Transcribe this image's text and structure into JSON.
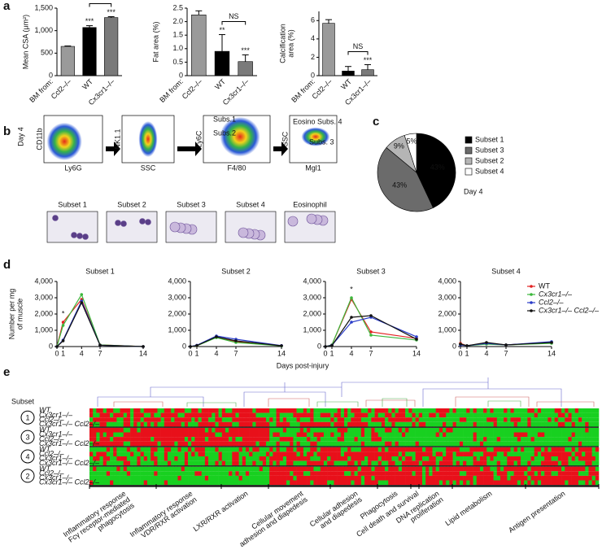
{
  "panel_letters": [
    "a",
    "b",
    "c",
    "d",
    "e"
  ],
  "chart_data": [
    {
      "type": "bar",
      "ylabel": "Mean CSA (μm²)",
      "category_prefix": "BM from:",
      "categories": [
        "Ccl2–/–",
        "WT",
        "Cx3cr1–/–"
      ],
      "values": [
        650,
        1070,
        1290
      ],
      "errors": [
        10,
        40,
        20
      ],
      "colors": [
        "#9a9a9a",
        "#000000",
        "#7a7a7a"
      ],
      "ylim": [
        0,
        1500
      ],
      "yticks": [
        0,
        500,
        {
          "value": 1000,
          "label": "1,000"
        },
        {
          "value": 1500,
          "label": "1,500"
        }
      ],
      "annotations": [
        {
          "text": "***",
          "at": "WT"
        },
        {
          "text": "***",
          "at": "Cx3cr1–/–"
        },
        {
          "text": "***",
          "between": [
            "WT",
            "Cx3cr1–/–"
          ]
        }
      ]
    },
    {
      "type": "bar",
      "ylabel": "Fat area (%)",
      "category_prefix": "BM from:",
      "categories": [
        "Ccl2–/–",
        "WT",
        "Cx3cr1–/–"
      ],
      "values": [
        2.25,
        0.9,
        0.52
      ],
      "errors": [
        0.15,
        0.62,
        0.25
      ],
      "colors": [
        "#9a9a9a",
        "#000000",
        "#7a7a7a"
      ],
      "ylim": [
        0,
        2.5
      ],
      "yticks": [
        0,
        0.5,
        {
          "value": 1,
          "label": "1.0"
        },
        1.5,
        {
          "value": 2,
          "label": "2.0"
        },
        2.5
      ],
      "annotations": [
        {
          "text": "**",
          "at": "WT"
        },
        {
          "text": "***",
          "at": "Cx3cr1–/–"
        },
        {
          "text": "NS",
          "between": [
            "WT",
            "Cx3cr1–/–"
          ]
        }
      ]
    },
    {
      "type": "bar",
      "ylabel": [
        "Calcification",
        "area (%)"
      ],
      "category_prefix": "BM from:",
      "categories": [
        "Ccl2–/–",
        "WT",
        "Cx3cr1–/–"
      ],
      "values": [
        5.7,
        0.5,
        0.65
      ],
      "errors": [
        0.4,
        0.5,
        0.55
      ],
      "colors": [
        "#9a9a9a",
        "#000000",
        "#7a7a7a"
      ],
      "ylim": [
        0,
        7
      ],
      "yticks": [
        0,
        2,
        4,
        6
      ],
      "annotations": [
        {
          "text": "***",
          "at": "Cx3cr1–/–"
        },
        {
          "text": "NS",
          "between": [
            "WT",
            "Cx3cr1–/–"
          ]
        }
      ]
    },
    {
      "type": "pie",
      "categories": [
        "Subset 1",
        "Subset 3",
        "Subset 2",
        "Subset 4"
      ],
      "values": [
        43,
        43,
        9,
        5
      ],
      "value_labels": [
        "43%",
        "43%",
        "9%",
        "5%"
      ],
      "colors": [
        "#000000",
        "#6b6b6b",
        "#b5b5b5",
        "#ffffff"
      ],
      "annotation": "Day 4"
    },
    {
      "type": "line",
      "title": "Subset 1",
      "ylabel": [
        "Number per mg",
        "of muscle"
      ],
      "x": [
        0,
        1,
        4,
        7,
        14
      ],
      "xlim": [
        0,
        14
      ],
      "xticks": [
        0,
        1,
        4,
        7,
        14
      ],
      "ylim": [
        0,
        4000
      ],
      "yticks": [
        0,
        {
          "value": 1000,
          "label": "1,000"
        },
        {
          "value": 2000,
          "label": "2,000"
        },
        {
          "value": 3000,
          "label": "3,000"
        },
        {
          "value": 4000,
          "label": "4,000"
        }
      ],
      "annotations": [
        {
          "text": "*",
          "x": 1
        }
      ],
      "series": [
        {
          "name": "WT",
          "color": "#e32222",
          "values": [
            0,
            1500,
            2900,
            100,
            0
          ]
        },
        {
          "name": "Cx3cr1–/–",
          "color": "#3cb83c",
          "values": [
            0,
            1300,
            3200,
            100,
            0
          ]
        },
        {
          "name": "Ccl2–/–",
          "color": "#2a3cc8",
          "values": [
            0,
            400,
            2800,
            80,
            0
          ]
        },
        {
          "name": "Cx3cr1–/– Ccl2–/–",
          "color": "#111111",
          "values": [
            0,
            350,
            2700,
            80,
            0
          ]
        }
      ]
    },
    {
      "type": "line",
      "title": "Subset 2",
      "x": [
        0,
        1,
        4,
        7,
        14
      ],
      "xlim": [
        0,
        14
      ],
      "xticks": [
        0,
        1,
        4,
        7,
        14
      ],
      "ylim": [
        0,
        4000
      ],
      "yticks": [
        0,
        {
          "value": 1000,
          "label": "1,000"
        },
        {
          "value": 2000,
          "label": "2,000"
        },
        {
          "value": 3000,
          "label": "3,000"
        },
        {
          "value": 4000,
          "label": "4,000"
        }
      ],
      "series": [
        {
          "name": "WT",
          "color": "#e32222",
          "values": [
            0,
            50,
            600,
            300,
            50
          ]
        },
        {
          "name": "Cx3cr1–/–",
          "color": "#3cb83c",
          "values": [
            0,
            50,
            550,
            250,
            40
          ]
        },
        {
          "name": "Ccl2–/–",
          "color": "#2a3cc8",
          "values": [
            0,
            80,
            650,
            450,
            60
          ]
        },
        {
          "name": "Cx3cr1–/– Ccl2–/–",
          "color": "#111111",
          "values": [
            0,
            60,
            600,
            350,
            50
          ]
        }
      ]
    },
    {
      "type": "line",
      "title": "Subset 3",
      "x": [
        0,
        1,
        4,
        7,
        14
      ],
      "xlim": [
        0,
        14
      ],
      "xticks": [
        0,
        1,
        4,
        7,
        14
      ],
      "ylim": [
        0,
        4000
      ],
      "yticks": [
        0,
        {
          "value": 1000,
          "label": "1,000"
        },
        {
          "value": 2000,
          "label": "2,000"
        },
        {
          "value": 3000,
          "label": "3,000"
        },
        {
          "value": 4000,
          "label": "4,000"
        }
      ],
      "annotations": [
        {
          "text": "*",
          "x": 4
        }
      ],
      "series": [
        {
          "name": "WT",
          "color": "#e32222",
          "values": [
            0,
            100,
            2900,
            900,
            500
          ]
        },
        {
          "name": "Cx3cr1–/–",
          "color": "#3cb83c",
          "values": [
            0,
            100,
            3000,
            700,
            400
          ]
        },
        {
          "name": "Ccl2–/–",
          "color": "#2a3cc8",
          "values": [
            0,
            80,
            1500,
            1800,
            600
          ]
        },
        {
          "name": "Cx3cr1–/– Ccl2–/–",
          "color": "#111111",
          "values": [
            0,
            60,
            1800,
            1900,
            450
          ]
        }
      ]
    },
    {
      "type": "line",
      "title": "Subset 4",
      "x": [
        0,
        1,
        4,
        7,
        14
      ],
      "xlim": [
        0,
        14
      ],
      "xticks": [
        0,
        1,
        4,
        7,
        14
      ],
      "ylim": [
        0,
        4000
      ],
      "yticks": [
        0,
        {
          "value": 1000,
          "label": "1,000"
        },
        {
          "value": 2000,
          "label": "2,000"
        },
        {
          "value": 3000,
          "label": "3,000"
        },
        {
          "value": 4000,
          "label": "4,000"
        }
      ],
      "legend": true,
      "series": [
        {
          "name": "WT",
          "color": "#e32222",
          "values": [
            200,
            50,
            200,
            100,
            250
          ]
        },
        {
          "name": "Cx3cr1–/–",
          "color": "#3cb83c",
          "values": [
            150,
            50,
            150,
            100,
            200
          ]
        },
        {
          "name": "Ccl2–/–",
          "color": "#2a3cc8",
          "values": [
            100,
            50,
            200,
            100,
            300
          ]
        },
        {
          "name": "Cx3cr1–/– Ccl2–/–",
          "color": "#111111",
          "values": [
            150,
            50,
            250,
            100,
            250
          ]
        }
      ]
    }
  ],
  "days_label": "Days post-injury",
  "flow": {
    "day": "Day 4",
    "plots": [
      {
        "x": "Ly6G",
        "y": "CD11b"
      },
      {
        "x": "SSC",
        "y": "NK1.1"
      },
      {
        "x": "F4/80",
        "y": "Ly6C",
        "gates": [
          "Subs.1",
          "Subs.2"
        ]
      },
      {
        "x": "Mgl1",
        "y": "SSC",
        "gates": [
          "Eosino",
          "Subs. 4",
          "Subs. 3"
        ]
      }
    ],
    "cells": [
      "Subset 1",
      "Subset 2",
      "Subset 3",
      "Subset 4",
      "Eosinophil"
    ]
  },
  "heatmap": {
    "row_header": "Subset",
    "groups": [
      {
        "label": "1",
        "genotypes": [
          "WT",
          "Cx3cr1–/–",
          "Ccl2–/–",
          "Cx3cr1–/– Ccl2–/–"
        ]
      },
      {
        "label": "3",
        "genotypes": [
          "WT",
          "Cx3cr1–/–",
          "Ccl2–/–",
          "Cx3cr1–/– Ccl2–/–"
        ]
      },
      {
        "label": "4",
        "genotypes": [
          "WT",
          "Ccl2–/–",
          "Cx3cr1–/–",
          "Cx3cr1–/– Ccl2–/–"
        ]
      },
      {
        "label": "2",
        "genotypes": [
          "WT",
          "Ccl2–/–",
          "Cx3cr1–/–",
          "Cx3cr1–/– Ccl2–/–"
        ]
      }
    ],
    "pathways": [
      [
        "Inflammatory response",
        "Fcγ receptor-mediated",
        "phagocytosis"
      ],
      [
        "Inflammatory response",
        "VDR/RXR activation"
      ],
      [
        "LXR/RXR activation"
      ],
      [
        "Cellular movement",
        "adhesion and diapedesis"
      ],
      [
        "Cellular adhesion",
        "and diapedesis"
      ],
      [
        "Phagocytosis"
      ],
      [
        "Cell death and survival"
      ],
      [
        "DNA replication",
        "proliferation"
      ],
      [
        "Lipid metabolism"
      ],
      [
        "Antigen presentation"
      ]
    ]
  }
}
